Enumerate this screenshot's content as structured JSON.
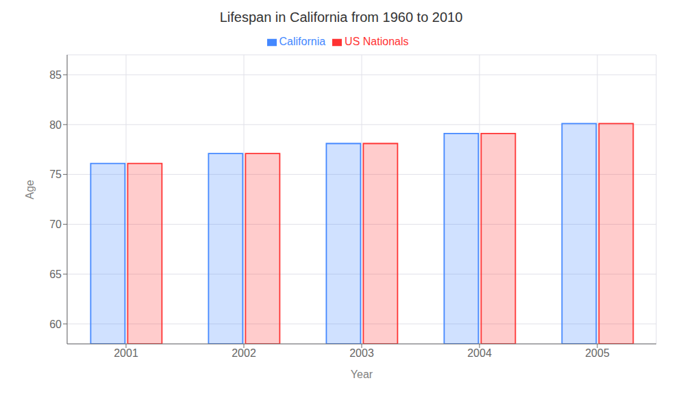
{
  "chart_data": {
    "type": "bar",
    "title": "Lifespan in California from 1960 to 2010",
    "x_label": "Year",
    "y_label": "Age",
    "categories": [
      "2001",
      "2002",
      "2003",
      "2004",
      "2005"
    ],
    "series": [
      {
        "name": "California",
        "color": "#4488ff",
        "values": [
          76.1,
          77.1,
          78.1,
          79.1,
          80.1
        ]
      },
      {
        "name": "US Nationals",
        "color": "#ff3333",
        "values": [
          76.1,
          77.1,
          78.1,
          79.1,
          80.1
        ]
      }
    ],
    "ylim": [
      58,
      87
    ],
    "yticks": [
      60,
      65,
      70,
      75,
      80,
      85
    ],
    "grid": true,
    "legend": "top"
  }
}
